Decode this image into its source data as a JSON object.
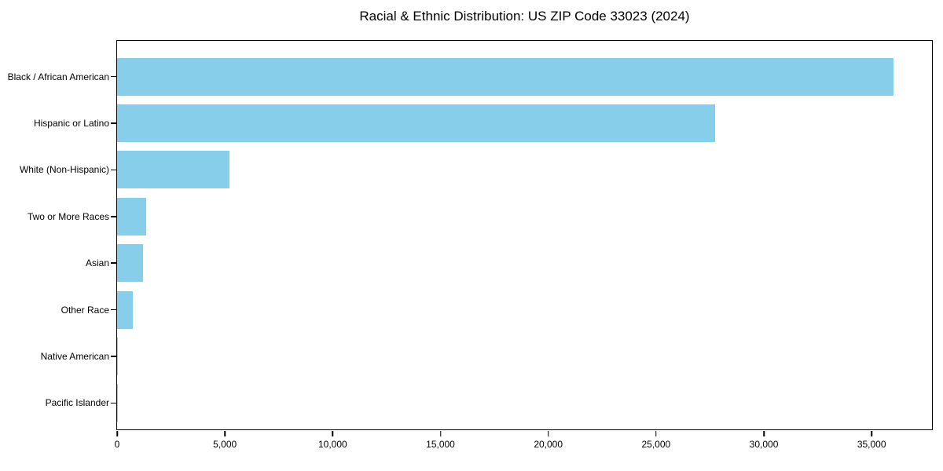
{
  "chart_data": {
    "type": "bar",
    "orientation": "horizontal",
    "title": "Racial & Ethnic Distribution: US ZIP Code 33023 (2024)",
    "xlabel": "",
    "ylabel": "",
    "categories": [
      "Black / African American",
      "Hispanic or Latino",
      "White (Non-Hispanic)",
      "Two or More Races",
      "Asian",
      "Other Race",
      "Native American",
      "Pacific Islander"
    ],
    "values": [
      36000,
      27750,
      5200,
      1350,
      1200,
      730,
      50,
      20
    ],
    "xlim": [
      0,
      37800
    ],
    "x_ticks": [
      {
        "value": 0,
        "label": "0"
      },
      {
        "value": 5000,
        "label": "5,000"
      },
      {
        "value": 10000,
        "label": "10,000"
      },
      {
        "value": 15000,
        "label": "15,000"
      },
      {
        "value": 20000,
        "label": "20,000"
      },
      {
        "value": 25000,
        "label": "25,000"
      },
      {
        "value": 30000,
        "label": "30,000"
      },
      {
        "value": 35000,
        "label": "35,000"
      }
    ],
    "grid": false,
    "legend": "none",
    "bar_color": "#87CEEB",
    "spine_color": "#000000",
    "background_color": "#ffffff"
  }
}
